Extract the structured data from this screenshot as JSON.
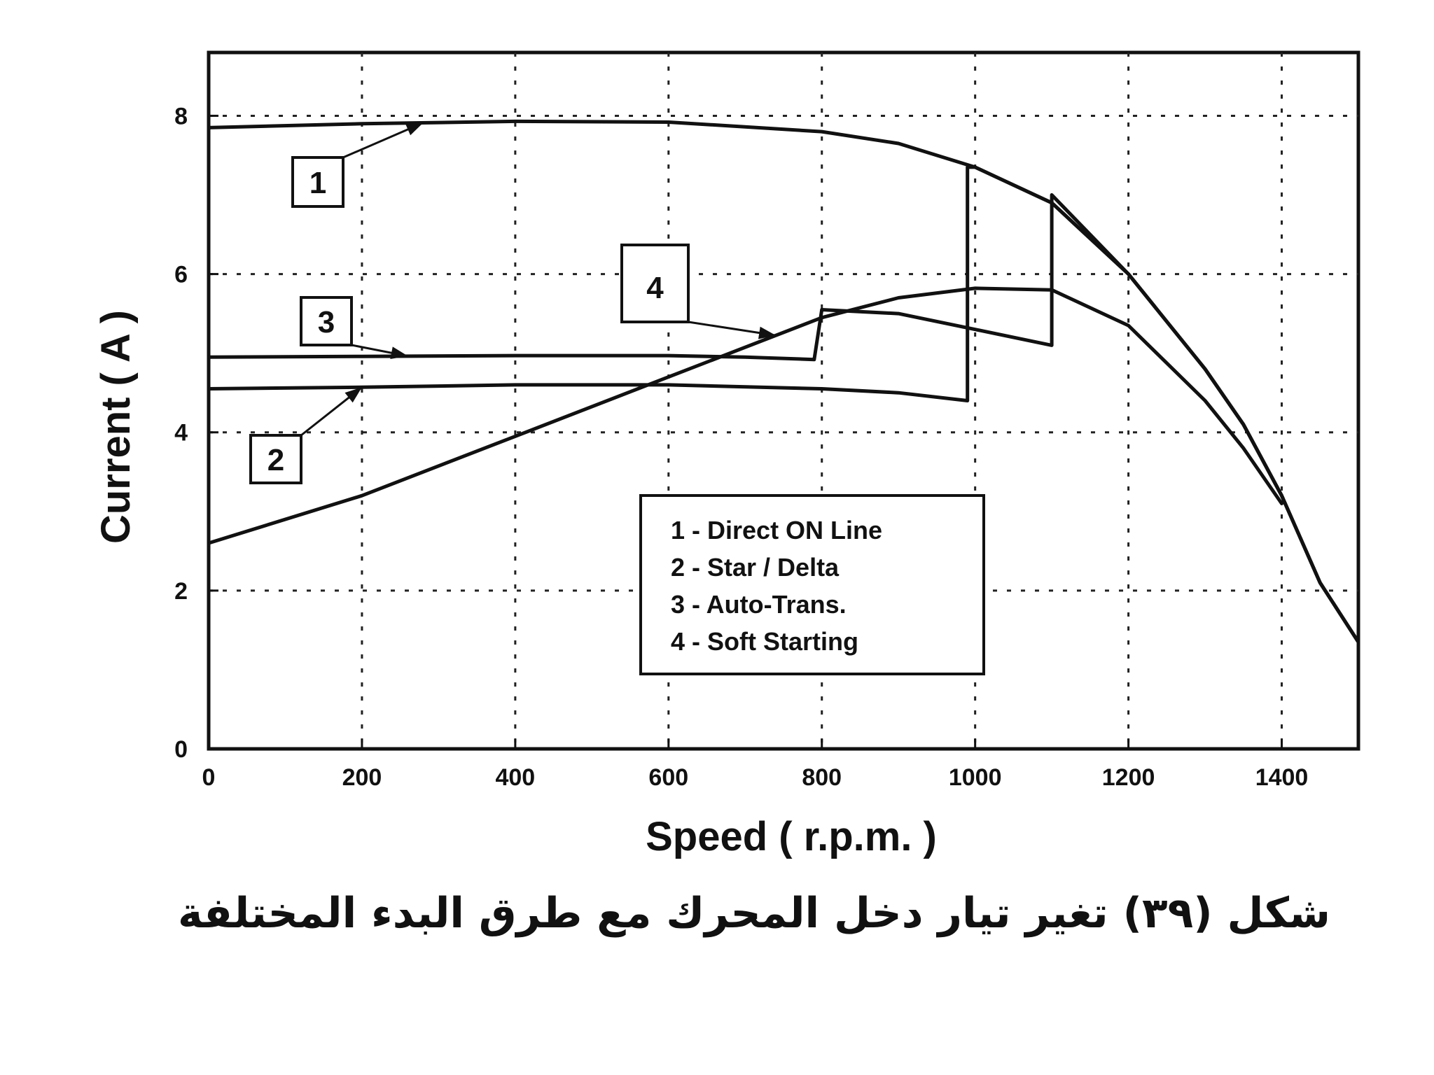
{
  "chart_data": {
    "type": "line",
    "xlabel": "Speed  ( r.p.m. )",
    "ylabel": "Current  ( A )",
    "xlim": [
      0,
      1500
    ],
    "ylim": [
      0,
      8.8
    ],
    "x_ticks": [
      0,
      200,
      400,
      600,
      800,
      1000,
      1200,
      1400
    ],
    "y_ticks": [
      0,
      2,
      4,
      6,
      8
    ],
    "grid": true,
    "legend_position": "center-right",
    "series": [
      {
        "name": "1 - Direct ON Line",
        "tag": "1",
        "points": [
          [
            0,
            7.85
          ],
          [
            200,
            7.9
          ],
          [
            400,
            7.93
          ],
          [
            600,
            7.92
          ],
          [
            800,
            7.8
          ],
          [
            900,
            7.65
          ],
          [
            1000,
            7.35
          ],
          [
            1100,
            6.9
          ],
          [
            1200,
            6.0
          ],
          [
            1300,
            4.8
          ],
          [
            1350,
            4.1
          ],
          [
            1400,
            3.2
          ],
          [
            1450,
            2.1
          ],
          [
            1500,
            1.35
          ]
        ]
      },
      {
        "name": "2 - Star / Delta",
        "tag": "2",
        "points": [
          [
            0,
            4.55
          ],
          [
            200,
            4.57
          ],
          [
            400,
            4.6
          ],
          [
            600,
            4.6
          ],
          [
            800,
            4.55
          ],
          [
            900,
            4.5
          ],
          [
            990,
            4.4
          ],
          [
            990,
            7.35
          ],
          [
            1000,
            7.35
          ],
          [
            1100,
            6.9
          ],
          [
            1200,
            6.0
          ],
          [
            1300,
            4.8
          ],
          [
            1350,
            4.1
          ],
          [
            1400,
            3.2
          ],
          [
            1450,
            2.1
          ],
          [
            1500,
            1.35
          ]
        ]
      },
      {
        "name": "3 - Auto-Trans.",
        "tag": "3",
        "points": [
          [
            0,
            4.95
          ],
          [
            200,
            4.96
          ],
          [
            400,
            4.97
          ],
          [
            600,
            4.97
          ],
          [
            700,
            4.95
          ],
          [
            790,
            4.92
          ],
          [
            800,
            5.55
          ],
          [
            900,
            5.5
          ],
          [
            1000,
            5.3
          ],
          [
            1100,
            5.1
          ],
          [
            1100,
            7.0
          ],
          [
            1200,
            6.0
          ],
          [
            1300,
            4.8
          ],
          [
            1350,
            4.1
          ],
          [
            1400,
            3.2
          ],
          [
            1450,
            2.1
          ],
          [
            1500,
            1.35
          ]
        ]
      },
      {
        "name": "4 - Soft Starting",
        "tag": "4",
        "points": [
          [
            0,
            2.6
          ],
          [
            200,
            3.2
          ],
          [
            400,
            3.95
          ],
          [
            600,
            4.7
          ],
          [
            800,
            5.45
          ],
          [
            900,
            5.7
          ],
          [
            1000,
            5.82
          ],
          [
            1100,
            5.8
          ],
          [
            1200,
            5.35
          ],
          [
            1300,
            4.4
          ],
          [
            1350,
            3.8
          ],
          [
            1400,
            3.1
          ]
        ]
      }
    ],
    "legend": [
      "1 - Direct ON Line",
      "2 - Star / Delta",
      "3 - Auto-Trans.",
      "4 - Soft Starting"
    ]
  },
  "caption": "شكل (٣٩) تغير تيار دخل المحرك مع طرق البدء المختلفة"
}
